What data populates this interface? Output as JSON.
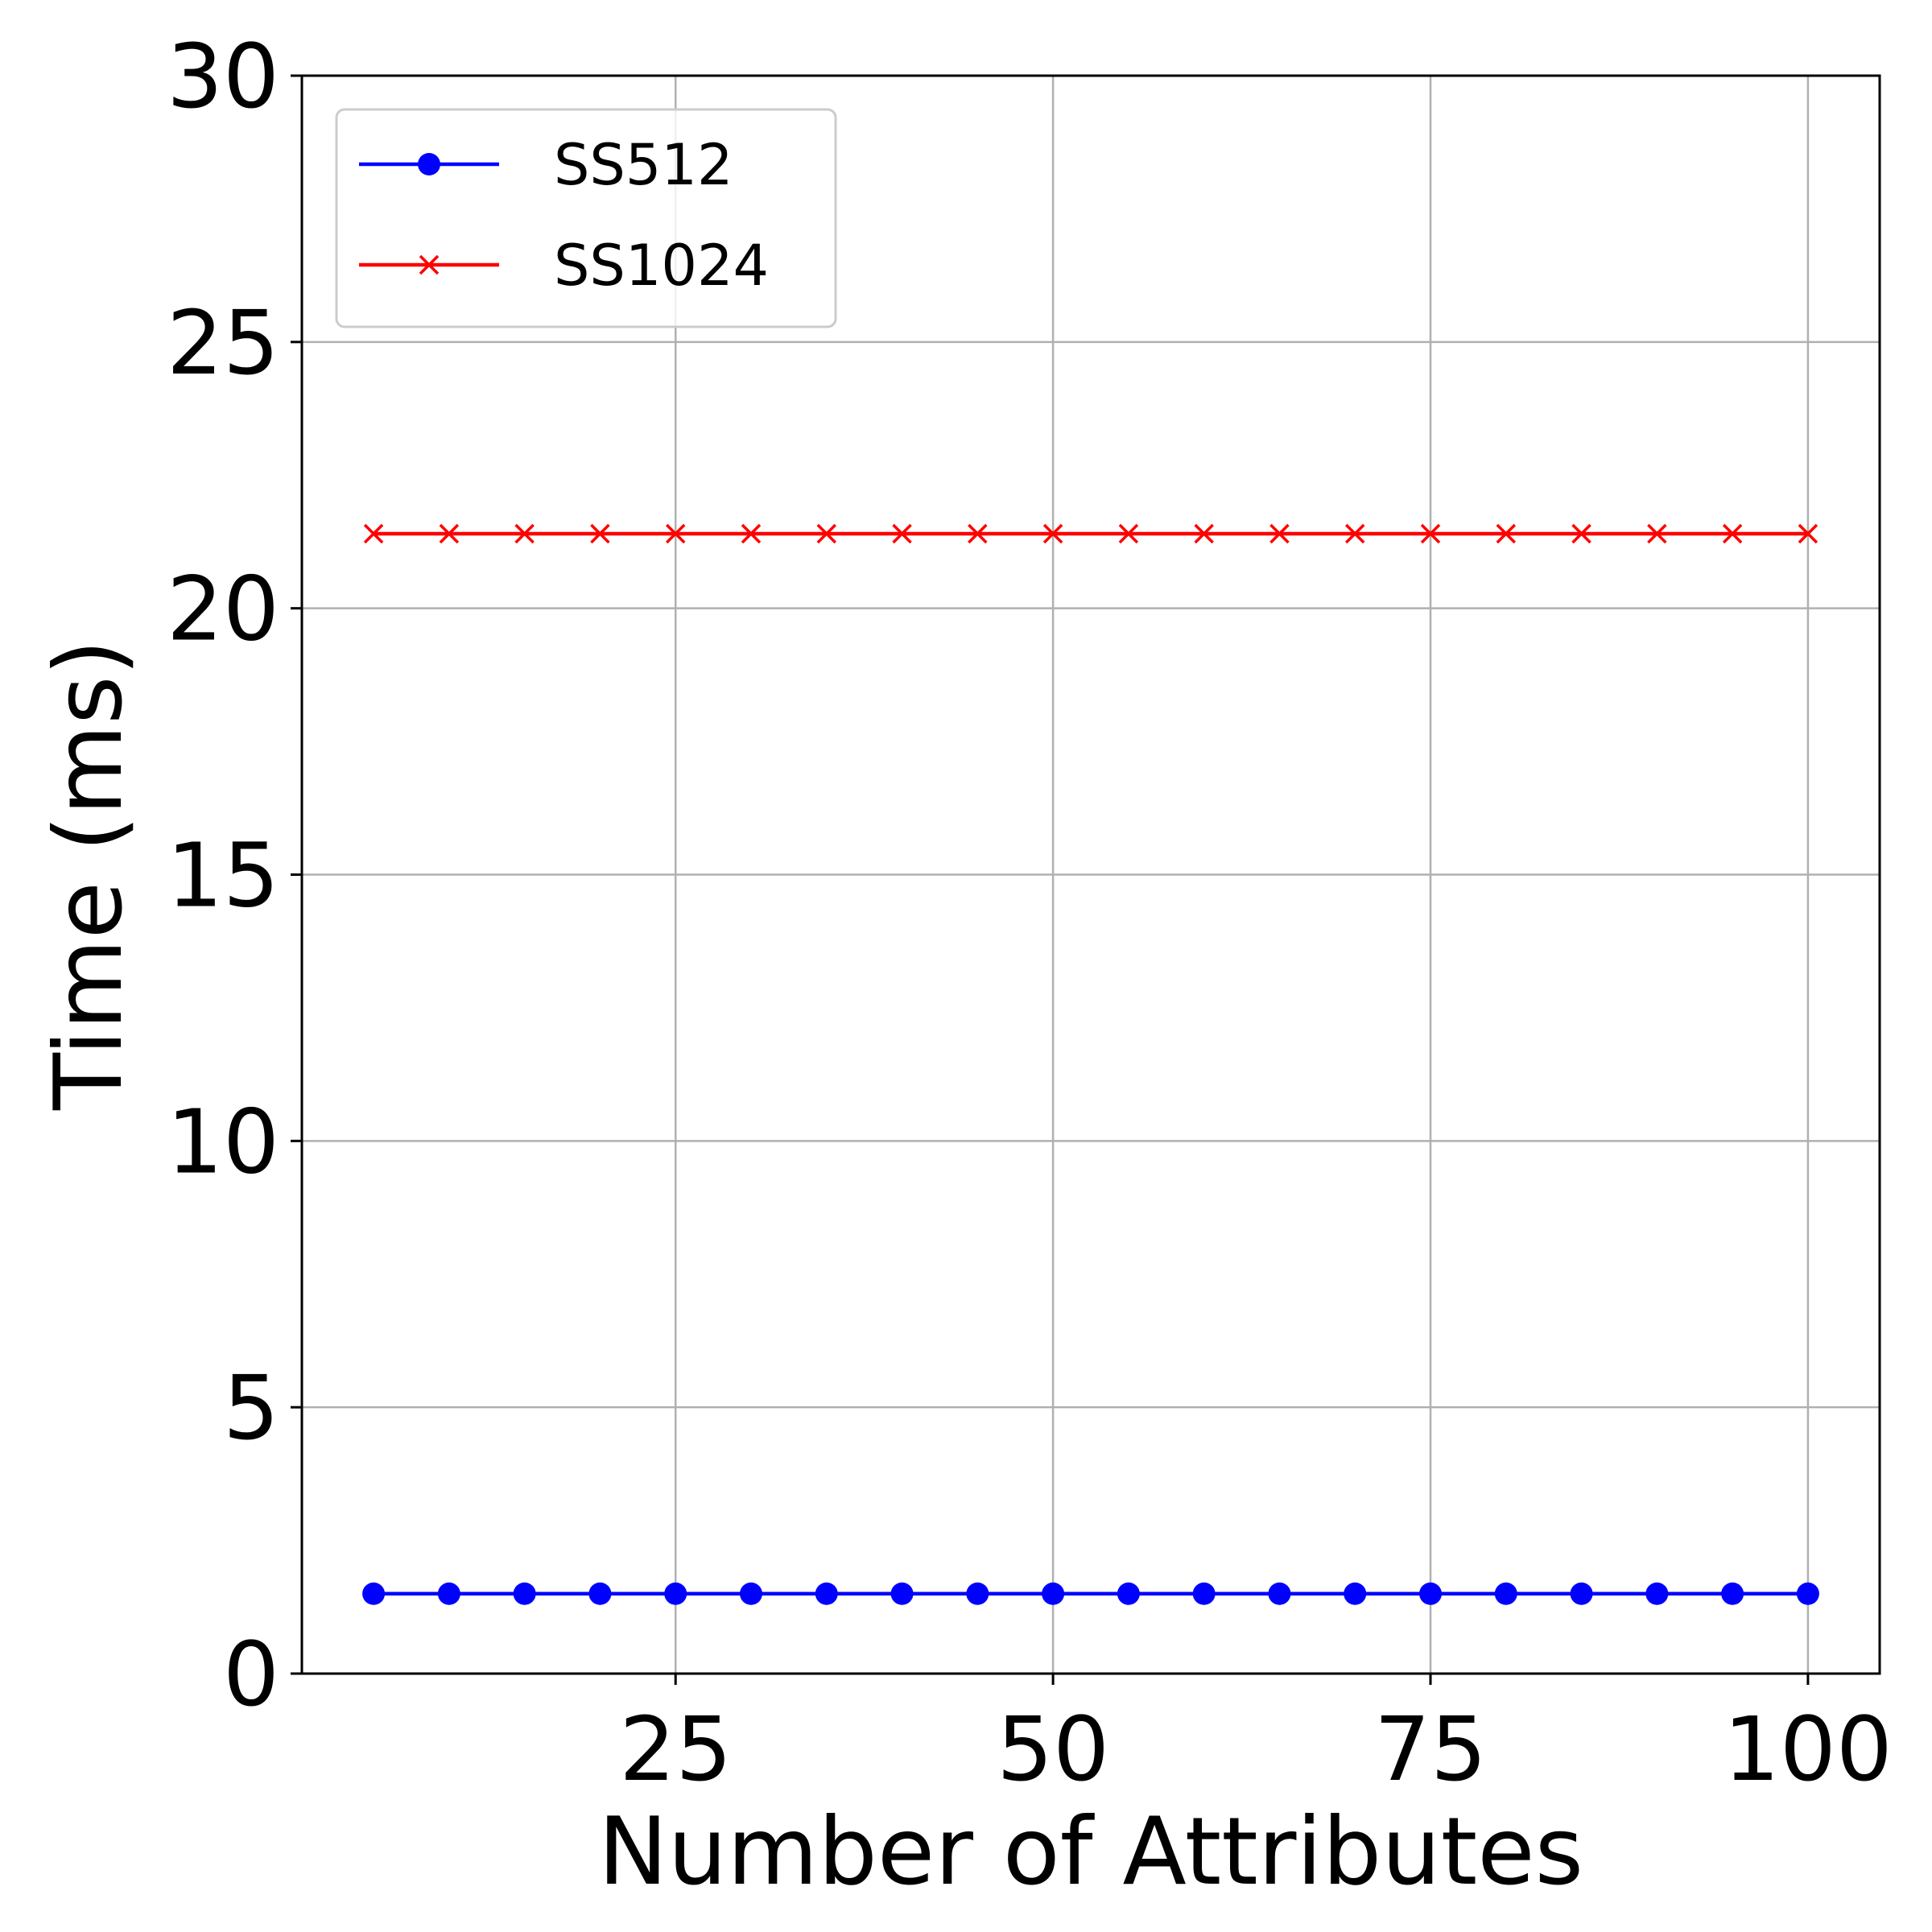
{
  "chart_data": {
    "type": "line",
    "title": "",
    "xlabel": "Number of Attributes",
    "ylabel": "Time (ms)",
    "xlim": [
      0.25,
      104.75
    ],
    "ylim": [
      0,
      30
    ],
    "xticks": [
      25,
      50,
      75,
      100
    ],
    "yticks": [
      0,
      5,
      10,
      15,
      20,
      25,
      30
    ],
    "grid": true,
    "legend_position": "upper-left",
    "x": [
      5,
      10,
      15,
      20,
      25,
      30,
      35,
      40,
      45,
      50,
      55,
      60,
      65,
      70,
      75,
      80,
      85,
      90,
      95,
      100
    ],
    "series": [
      {
        "name": "SS512",
        "color": "#0000ff",
        "marker": "circle",
        "values": [
          1.5,
          1.5,
          1.5,
          1.5,
          1.5,
          1.5,
          1.5,
          1.5,
          1.5,
          1.5,
          1.5,
          1.5,
          1.5,
          1.5,
          1.5,
          1.5,
          1.5,
          1.5,
          1.5,
          1.5
        ]
      },
      {
        "name": "SS1024",
        "color": "#ff0000",
        "marker": "x",
        "values": [
          21.4,
          21.4,
          21.4,
          21.4,
          21.4,
          21.4,
          21.4,
          21.4,
          21.4,
          21.4,
          21.4,
          21.4,
          21.4,
          21.4,
          21.4,
          21.4,
          21.4,
          21.4,
          21.4,
          21.4
        ]
      }
    ]
  }
}
